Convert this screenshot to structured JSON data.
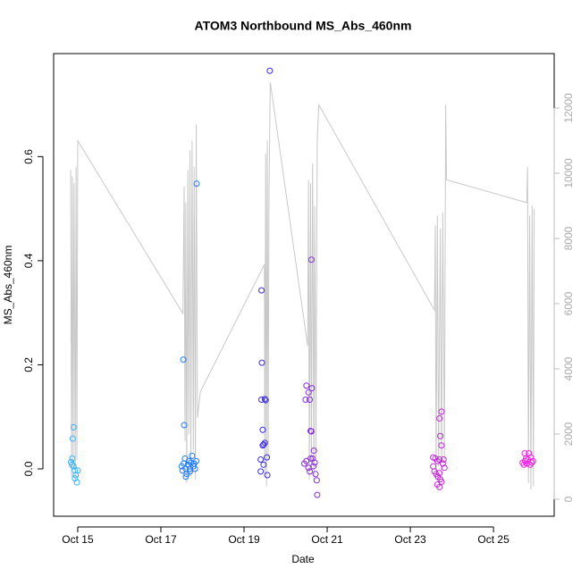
{
  "chart_data": {
    "type": "scatter",
    "title": "ATOM3 Northbound MS_Abs_460nm",
    "x_label": "Date",
    "y_label": "MS_Abs_460nm",
    "xlim": [
      14.42,
      26.46
    ],
    "ylim": [
      -0.091,
      0.798
    ],
    "y2lim": [
      -520,
      13671
    ],
    "xticks": [
      {
        "value": 15,
        "label": "Oct 15"
      },
      {
        "value": 17,
        "label": "Oct 17"
      },
      {
        "value": 19,
        "label": "Oct 19"
      },
      {
        "value": 21,
        "label": "Oct 21"
      },
      {
        "value": 23,
        "label": "Oct 23"
      },
      {
        "value": 25,
        "label": "Oct 25"
      }
    ],
    "yticks": [
      {
        "value": 0,
        "label": "0.0"
      },
      0.2,
      0.4,
      0.6
    ],
    "y2ticks": [
      0,
      2000,
      4000,
      6000,
      8000,
      10000,
      12000
    ],
    "series": [
      {
        "type": "line",
        "axis": "y2",
        "color": "#c8c8c8",
        "x": [
          14.83,
          14.85,
          14.87,
          14.89,
          14.91,
          14.94,
          14.96,
          14.98,
          15.0,
          17.53,
          17.56,
          17.58,
          17.6,
          17.62,
          17.65,
          17.67,
          17.7,
          17.72,
          17.75,
          17.78,
          17.8,
          17.83,
          17.85,
          17.88,
          17.95,
          19.49,
          19.5,
          19.52,
          19.54,
          19.56,
          19.58,
          19.6,
          19.63,
          20.53,
          20.55,
          20.57,
          20.6,
          20.62,
          20.65,
          20.68,
          20.7,
          20.73,
          20.76,
          20.8,
          23.58,
          23.6,
          23.62,
          23.65,
          23.68,
          23.72,
          23.75,
          23.78,
          23.82,
          23.85,
          23.87,
          25.8,
          25.82,
          25.84,
          25.87,
          25.9,
          25.93,
          25.96,
          25.98
        ],
        "values": [
          10100,
          700,
          9900,
          1000,
          9700,
          600,
          10200,
          1200,
          11000,
          5700,
          9600,
          1800,
          9100,
          500,
          10100,
          2000,
          10700,
          700,
          11000,
          1500,
          10200,
          600,
          11500,
          2500,
          3300,
          7200,
          700,
          10600,
          400,
          11000,
          1200,
          9200,
          12800,
          4700,
          9800,
          600,
          9700,
          900,
          10300,
          500,
          9000,
          1300,
          11000,
          12100,
          5800,
          8400,
          600,
          8700,
          1000,
          8300,
          800,
          8800,
          1200,
          12100,
          9800,
          9100,
          10200,
          500,
          8700,
          300,
          9000,
          400,
          8900
        ]
      },
      {
        "type": "points",
        "color": "#33b5ff",
        "x": [
          14.9,
          14.88,
          14.87,
          14.84,
          14.86,
          14.9,
          14.93,
          14.95,
          14.93,
          14.98,
          15.0
        ],
        "values": [
          0.08,
          0.058,
          0.02,
          0.013,
          0.008,
          0.005,
          -0.003,
          -0.012,
          -0.018,
          -0.026,
          -0.003
        ]
      },
      {
        "type": "points",
        "color": "#1e7bff",
        "x": [
          17.54,
          17.56,
          17.86,
          17.5,
          17.52,
          17.55,
          17.58,
          17.6,
          17.62,
          17.65,
          17.68,
          17.7,
          17.72,
          17.75,
          17.78,
          17.8,
          17.82,
          17.85,
          17.6,
          17.7
        ],
        "values": [
          0.21,
          0.084,
          0.548,
          0.005,
          -0.003,
          0.01,
          0.02,
          0.0,
          -0.01,
          0.008,
          0.015,
          -0.005,
          0.012,
          0.025,
          0.005,
          0.01,
          0.0,
          0.015,
          -0.015,
          0.0
        ]
      },
      {
        "type": "points",
        "color": "#3a2be8",
        "x": [
          19.42,
          19.43,
          19.42,
          19.45,
          19.47,
          19.5,
          19.52,
          19.62,
          19.45,
          19.5,
          19.4,
          19.47,
          19.55,
          19.4,
          19.56
        ],
        "values": [
          0.343,
          0.204,
          0.133,
          0.075,
          0.047,
          0.134,
          0.132,
          0.765,
          0.045,
          0.05,
          0.018,
          0.008,
          0.022,
          -0.005,
          -0.012
        ]
      },
      {
        "type": "points",
        "color": "#8a2be2",
        "x": [
          20.62,
          20.5,
          20.48,
          20.55,
          20.58,
          20.63,
          20.6,
          20.62,
          20.45,
          20.5,
          20.55,
          20.58,
          20.65,
          20.68,
          20.7,
          20.72,
          20.75,
          20.76,
          20.6,
          20.67
        ],
        "values": [
          0.402,
          0.16,
          0.133,
          0.147,
          0.133,
          0.155,
          0.073,
          0.072,
          0.01,
          0.015,
          0.002,
          -0.005,
          0.02,
          0.035,
          0.012,
          -0.01,
          -0.022,
          -0.05,
          0.02,
          0.005
        ]
      },
      {
        "type": "points",
        "color": "#c626d9",
        "x": [
          23.75,
          23.7,
          23.72,
          23.75,
          23.55,
          23.6,
          23.65,
          23.7,
          23.78,
          23.8,
          23.55,
          23.58,
          23.62,
          23.66,
          23.7,
          23.72,
          23.75,
          23.65,
          23.7,
          23.82
        ],
        "values": [
          0.11,
          0.097,
          0.063,
          0.045,
          0.022,
          0.02,
          0.015,
          0.018,
          0.01,
          0.018,
          0.005,
          -0.005,
          -0.01,
          -0.015,
          -0.008,
          -0.02,
          -0.025,
          -0.03,
          -0.035,
          0.002
        ]
      },
      {
        "type": "points",
        "color": "#f01fe6",
        "x": [
          25.75,
          25.85,
          25.78,
          25.82,
          25.9,
          25.7,
          25.73,
          25.8,
          25.88,
          25.92,
          25.95,
          25.76
        ],
        "values": [
          0.03,
          0.03,
          0.02,
          0.018,
          0.022,
          0.012,
          0.008,
          0.01,
          0.008,
          0.012,
          0.015,
          0.015
        ]
      }
    ]
  }
}
